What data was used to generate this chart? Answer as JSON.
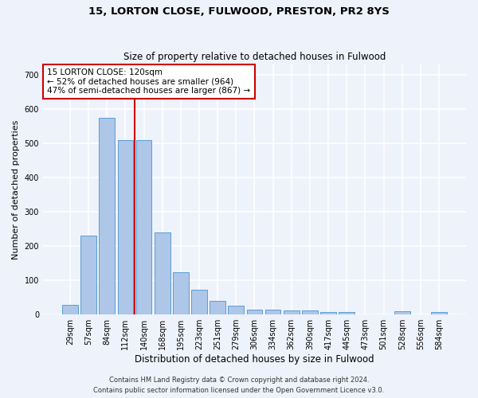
{
  "title1": "15, LORTON CLOSE, FULWOOD, PRESTON, PR2 8YS",
  "title2": "Size of property relative to detached houses in Fulwood",
  "xlabel": "Distribution of detached houses by size in Fulwood",
  "ylabel": "Number of detached properties",
  "bar_labels": [
    "29sqm",
    "57sqm",
    "84sqm",
    "112sqm",
    "140sqm",
    "168sqm",
    "195sqm",
    "223sqm",
    "251sqm",
    "279sqm",
    "306sqm",
    "334sqm",
    "362sqm",
    "390sqm",
    "417sqm",
    "445sqm",
    "473sqm",
    "501sqm",
    "528sqm",
    "556sqm",
    "584sqm"
  ],
  "bar_values": [
    27,
    230,
    575,
    510,
    510,
    240,
    123,
    72,
    40,
    26,
    14,
    14,
    10,
    10,
    6,
    6,
    0,
    0,
    8,
    0,
    6
  ],
  "bar_color": "#aec6e8",
  "bar_edge_color": "#5a9fd4",
  "vline_x": 3.5,
  "vline_color": "#cc0000",
  "annotation_text": "15 LORTON CLOSE: 120sqm\n← 52% of detached houses are smaller (964)\n47% of semi-detached houses are larger (867) →",
  "annotation_box_color": "#ffffff",
  "annotation_box_edge": "#cc0000",
  "ylim": [
    0,
    730
  ],
  "yticks": [
    0,
    100,
    200,
    300,
    400,
    500,
    600,
    700
  ],
  "footer1": "Contains HM Land Registry data © Crown copyright and database right 2024.",
  "footer2": "Contains public sector information licensed under the Open Government Licence v3.0.",
  "bg_color": "#eef2fb",
  "plot_bg_color": "#eef2fb",
  "grid_color": "#ffffff"
}
